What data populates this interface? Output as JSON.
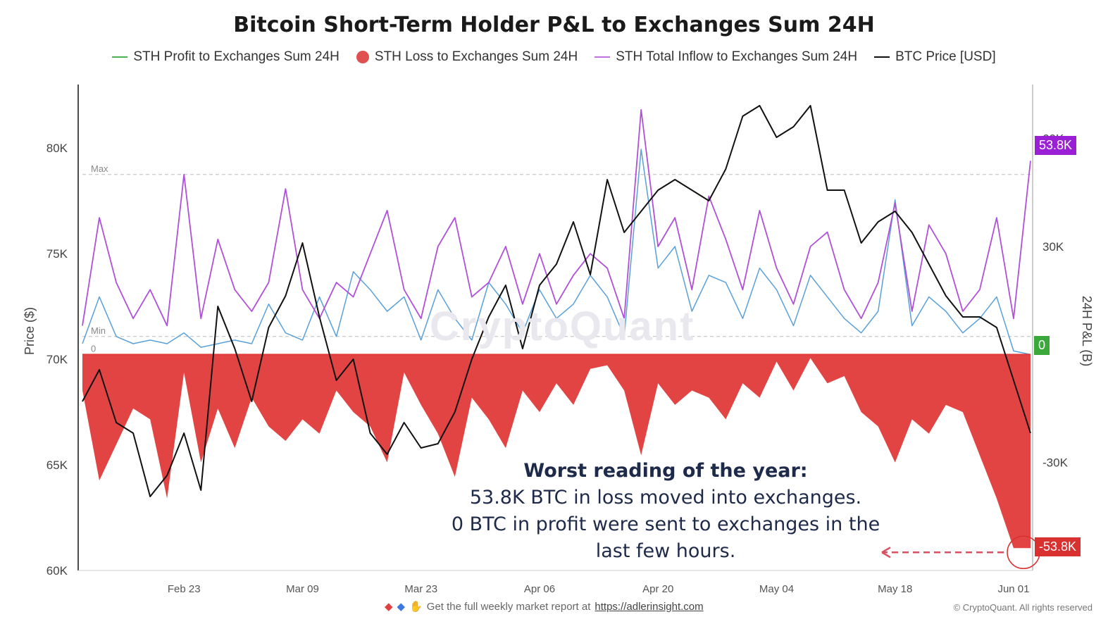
{
  "chart_data": {
    "type": "area",
    "title": "Bitcoin Short-Term Holder P&L to Exchanges Sum 24H",
    "ylabel_left": "Price ($)",
    "ylabel_right": "24H P&L (B)",
    "ylim_left": [
      60000,
      83000
    ],
    "ylim_right": [
      -60000,
      75000
    ],
    "y_ticks_left": [
      "80K",
      "75K",
      "70K",
      "65K",
      "60K"
    ],
    "y_tick_values_left": [
      80000,
      75000,
      70000,
      65000,
      60000
    ],
    "y_ticks_right": [
      "60K",
      "30K",
      "-30K"
    ],
    "y_tick_values_right": [
      60000,
      30000,
      -30000
    ],
    "x_ticks": [
      "Feb 23",
      "Mar 09",
      "Mar 23",
      "Apr 06",
      "Apr 20",
      "May 04",
      "May 18",
      "Jun 01"
    ],
    "x_tick_days": [
      15,
      29,
      43,
      57,
      71,
      85,
      99,
      113
    ],
    "x_range_days": [
      3,
      115
    ],
    "reference_lines": [
      {
        "label": "Max",
        "value": 50000
      },
      {
        "label": "Min",
        "value": 5000
      },
      {
        "label": "0",
        "value": 0
      }
    ],
    "badges": {
      "top": "53.8K",
      "zero": "0",
      "bottom": "-53.8K"
    },
    "series": [
      {
        "name": "STH Profit to Exchanges Sum 24H",
        "color": "#5aa0d8",
        "x": [
          3,
          5,
          7,
          9,
          11,
          13,
          15,
          17,
          19,
          21,
          23,
          25,
          27,
          29,
          31,
          33,
          35,
          37,
          39,
          41,
          43,
          45,
          47,
          49,
          51,
          53,
          55,
          57,
          59,
          61,
          63,
          65,
          67,
          69,
          71,
          73,
          75,
          77,
          79,
          81,
          83,
          85,
          87,
          89,
          91,
          93,
          95,
          97,
          99,
          101,
          103,
          105,
          107,
          109,
          111,
          113,
          115
        ],
        "values": [
          3000,
          16000,
          5000,
          3000,
          4000,
          3000,
          6000,
          2000,
          3000,
          4000,
          3000,
          14000,
          6000,
          4000,
          16000,
          5000,
          23000,
          18000,
          12000,
          16000,
          4000,
          18000,
          10000,
          4000,
          20000,
          14000,
          6000,
          18000,
          10000,
          14000,
          22000,
          16000,
          5000,
          57000,
          24000,
          30000,
          12000,
          22000,
          20000,
          10000,
          24000,
          18000,
          8000,
          22000,
          16000,
          10000,
          6000,
          12000,
          43000,
          8000,
          16000,
          12000,
          6000,
          10000,
          16000,
          1000,
          0
        ]
      },
      {
        "name": "STH Loss to Exchanges Sum 24H",
        "color": "#e03a3a",
        "x": [
          3,
          5,
          7,
          9,
          11,
          13,
          15,
          17,
          19,
          21,
          23,
          25,
          27,
          29,
          31,
          33,
          35,
          37,
          39,
          41,
          43,
          45,
          47,
          49,
          51,
          53,
          55,
          57,
          59,
          61,
          63,
          65,
          67,
          69,
          71,
          73,
          75,
          77,
          79,
          81,
          83,
          85,
          87,
          89,
          91,
          93,
          95,
          97,
          99,
          101,
          103,
          105,
          107,
          109,
          111,
          113,
          115
        ],
        "values": [
          -10000,
          -35000,
          -25000,
          -15000,
          -18000,
          -40000,
          -5000,
          -30000,
          -15000,
          -26000,
          -12000,
          -20000,
          -24000,
          -18000,
          -22000,
          -10000,
          -16000,
          -20000,
          -30000,
          -5000,
          -14000,
          -22000,
          -34000,
          -12000,
          -18000,
          -26000,
          -10000,
          -16000,
          -8000,
          -14000,
          -4000,
          -3000,
          -10000,
          -28000,
          -8000,
          -14000,
          -10000,
          -12000,
          -18000,
          -8000,
          -12000,
          -2000,
          -10000,
          -1000,
          -8000,
          -6000,
          -16000,
          -20000,
          -30000,
          -18000,
          -22000,
          -14000,
          -16000,
          -28000,
          -40000,
          -53800,
          -53800
        ]
      },
      {
        "name": "STH Total Inflow to Exchanges Sum 24H",
        "color": "#b050d8",
        "x": [
          3,
          5,
          7,
          9,
          11,
          13,
          15,
          17,
          19,
          21,
          23,
          25,
          27,
          29,
          31,
          33,
          35,
          37,
          39,
          41,
          43,
          45,
          47,
          49,
          51,
          53,
          55,
          57,
          59,
          61,
          63,
          65,
          67,
          69,
          71,
          73,
          75,
          77,
          79,
          81,
          83,
          85,
          87,
          89,
          91,
          93,
          95,
          97,
          99,
          101,
          103,
          105,
          107,
          109,
          111,
          113,
          115
        ],
        "values": [
          8000,
          38000,
          20000,
          10000,
          18000,
          8000,
          50000,
          10000,
          32000,
          18000,
          12000,
          20000,
          46000,
          18000,
          10000,
          20000,
          16000,
          28000,
          40000,
          18000,
          10000,
          30000,
          38000,
          16000,
          20000,
          30000,
          14000,
          28000,
          14000,
          22000,
          28000,
          24000,
          10000,
          68000,
          30000,
          38000,
          18000,
          44000,
          32000,
          18000,
          40000,
          24000,
          14000,
          30000,
          34000,
          18000,
          10000,
          20000,
          42000,
          12000,
          36000,
          28000,
          12000,
          18000,
          38000,
          10000,
          53800
        ]
      },
      {
        "name": "BTC Price [USD]",
        "color": "#111111",
        "x": [
          3,
          5,
          7,
          9,
          11,
          13,
          15,
          17,
          19,
          21,
          23,
          25,
          27,
          29,
          31,
          33,
          35,
          37,
          39,
          41,
          43,
          45,
          47,
          49,
          51,
          53,
          55,
          57,
          59,
          61,
          63,
          65,
          67,
          69,
          71,
          73,
          75,
          77,
          79,
          81,
          83,
          85,
          87,
          89,
          91,
          93,
          95,
          97,
          99,
          101,
          103,
          105,
          107,
          109,
          111,
          113,
          115
        ],
        "values": [
          68000,
          69500,
          67000,
          66500,
          63500,
          64500,
          66500,
          63800,
          72500,
          70500,
          68000,
          71500,
          73000,
          75500,
          72000,
          69000,
          70000,
          66500,
          65500,
          67000,
          65800,
          66000,
          67500,
          70000,
          72000,
          73500,
          70500,
          73500,
          74500,
          76500,
          74000,
          78500,
          76000,
          77000,
          78000,
          78500,
          78000,
          77500,
          79000,
          81500,
          82000,
          80500,
          81000,
          82000,
          78000,
          78000,
          75500,
          76500,
          77000,
          76000,
          74500,
          73000,
          72000,
          72000,
          71500,
          69000,
          66500
        ]
      }
    ],
    "annotation": {
      "heading": "Worst reading of the year:",
      "line1": "53.8K BTC in loss moved into exchanges.",
      "line2": "0 BTC in profit were sent to exchanges in the",
      "line3": "last few hours."
    }
  },
  "legend": [
    {
      "label": "STH Profit to Exchanges Sum 24H",
      "color": "#4caf50",
      "shape": "line"
    },
    {
      "label": "STH Loss to Exchanges Sum 24H",
      "color": "#e05050",
      "shape": "dot"
    },
    {
      "label": "STH Total Inflow to Exchanges Sum 24H",
      "color": "#c070e0",
      "shape": "line"
    },
    {
      "label": "BTC Price [USD]",
      "color": "#111111",
      "shape": "line"
    }
  ],
  "footer": {
    "text": "Get the full weekly market report at",
    "link": "https://adlerinsight.com",
    "copyright": "© CryptoQuant. All rights reserved"
  },
  "watermark": "CryptoQuant"
}
